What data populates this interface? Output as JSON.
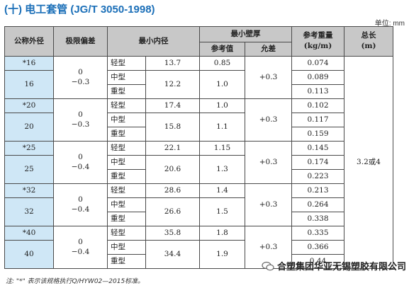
{
  "title": "(十) 电工套管 (JG/T 3050-1998)",
  "unit": "单位: mm",
  "headers": {
    "od": "公称外径",
    "dev": "极限偏差",
    "min_id": "最小内径",
    "min_wall": "最小壁厚",
    "ref_val": "参考值",
    "tol": "允差",
    "weight": "参考重量",
    "weight_unit": "(kg/m)",
    "length": "总长",
    "length_unit": "(m)"
  },
  "groups": [
    {
      "od_a": "*16",
      "od_b": "16",
      "dev_1": "0",
      "dev_2": "−0.3",
      "tol": "+0.3",
      "rows": [
        {
          "type": "轻型",
          "id": "13.7",
          "wall": "0.85",
          "weight": "0.074"
        },
        {
          "type": "中型",
          "id": "12.2",
          "wall": "1.0",
          "weight": "0.089"
        },
        {
          "type": "重型",
          "weight": "0.113"
        }
      ]
    },
    {
      "od_a": "*20",
      "od_b": "20",
      "dev_1": "0",
      "dev_2": "−0.3",
      "tol": "+0.3",
      "rows": [
        {
          "type": "轻型",
          "id": "17.4",
          "wall": "1.0",
          "weight": "0.102"
        },
        {
          "type": "中型",
          "id": "15.8",
          "wall": "1.1",
          "weight": "0.117"
        },
        {
          "type": "重型",
          "weight": "0.159"
        }
      ]
    },
    {
      "od_a": "*25",
      "od_b": "25",
      "dev_1": "0",
      "dev_2": "−0.4",
      "tol": "+0.3",
      "rows": [
        {
          "type": "轻型",
          "id": "22.1",
          "wall": "1.15",
          "weight": "0.145"
        },
        {
          "type": "中型",
          "id": "20.6",
          "wall": "1.3",
          "weight": "0.174"
        },
        {
          "type": "重型",
          "weight": "0.223"
        }
      ]
    },
    {
      "od_a": "*32",
      "od_b": "32",
      "dev_1": "0",
      "dev_2": "−0.4",
      "tol": "+0.3",
      "rows": [
        {
          "type": "轻型",
          "id": "28.6",
          "wall": "1.4",
          "weight": "0.213"
        },
        {
          "type": "中型",
          "id": "26.6",
          "wall": "1.5",
          "weight": "0.264"
        },
        {
          "type": "重型",
          "weight": "0.338"
        }
      ]
    },
    {
      "od_a": "*40",
      "od_b": "40",
      "dev_1": "0",
      "dev_2": "−0.4",
      "tol": "+0.3",
      "rows": [
        {
          "type": "轻型",
          "id": "35.8",
          "wall": "1.8",
          "weight": "0.335"
        },
        {
          "type": "中型",
          "id": "34.4",
          "wall": "1.9",
          "weight": "0.366"
        },
        {
          "type": "重型",
          "weight": "0.44"
        }
      ]
    }
  ],
  "length_value": "3.2或4",
  "note": "注: \"*\" 表示该规格执行Q/HYW02—2015标准。",
  "watermark": "合塑集团华亚无锡塑胶有限公司"
}
